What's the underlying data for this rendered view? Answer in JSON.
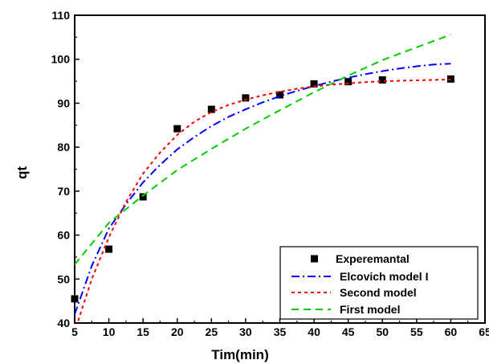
{
  "chart_data": {
    "type": "line",
    "xlabel": "Tim(min)",
    "ylabel": "qt",
    "xlim": [
      5,
      65
    ],
    "ylim": [
      40,
      110
    ],
    "x_ticks": [
      "5",
      "10",
      "15",
      "20",
      "25",
      "30",
      "35",
      "40",
      "45",
      "50",
      "55",
      "60",
      "65"
    ],
    "y_ticks": [
      "40",
      "50",
      "60",
      "70",
      "80",
      "90",
      "100",
      "110"
    ],
    "legend_position": "bottom-right",
    "grid": false,
    "series": [
      {
        "name": "Experemantal",
        "style": "markers",
        "color": "#000000",
        "x": [
          5,
          10,
          15,
          20,
          25,
          30,
          35,
          40,
          45,
          50,
          60
        ],
        "y": [
          45.5,
          56.8,
          68.7,
          84.2,
          88.6,
          91.2,
          91.9,
          94.4,
          94.9,
          95.3,
          95.5
        ]
      },
      {
        "name": "Elcovich model I",
        "style": "dash-dot",
        "color": "#0000ff",
        "x": [
          5,
          7.5,
          10,
          12.5,
          15,
          17.5,
          20,
          22.5,
          25,
          27.5,
          30,
          32.5,
          35,
          37.5,
          40,
          42.5,
          45,
          47.5,
          50,
          52.5,
          55,
          57.5,
          60
        ],
        "y": [
          42.0,
          53.0,
          61.5,
          67.0,
          72.0,
          76.0,
          79.5,
          82.3,
          84.8,
          86.9,
          88.6,
          90.2,
          91.6,
          92.8,
          93.9,
          94.9,
          95.8,
          96.6,
          97.3,
          97.9,
          98.4,
          98.8,
          99.0
        ]
      },
      {
        "name": "Second model",
        "style": "dotted",
        "color": "#ff0000",
        "x": [
          5.5,
          7.5,
          10,
          12.5,
          15,
          17.5,
          20,
          22.5,
          25,
          27.5,
          30,
          32.5,
          35,
          37.5,
          40,
          42.5,
          45,
          47.5,
          50,
          52.5,
          55,
          57.5,
          60
        ],
        "y": [
          40.5,
          50.0,
          59.5,
          67.5,
          74.0,
          78.8,
          82.8,
          85.8,
          88.0,
          89.6,
          90.8,
          91.8,
          92.6,
          93.3,
          93.8,
          94.2,
          94.5,
          94.8,
          95.0,
          95.1,
          95.2,
          95.3,
          95.4
        ]
      },
      {
        "name": "First model",
        "style": "dashed",
        "color": "#00cc00",
        "x": [
          5,
          10,
          15,
          20,
          25,
          30,
          35,
          40,
          45,
          50,
          55,
          60
        ],
        "y": [
          53.3,
          62.8,
          69.0,
          74.8,
          79.6,
          84.2,
          88.4,
          92.5,
          96.3,
          99.8,
          102.7,
          105.6
        ]
      }
    ]
  }
}
